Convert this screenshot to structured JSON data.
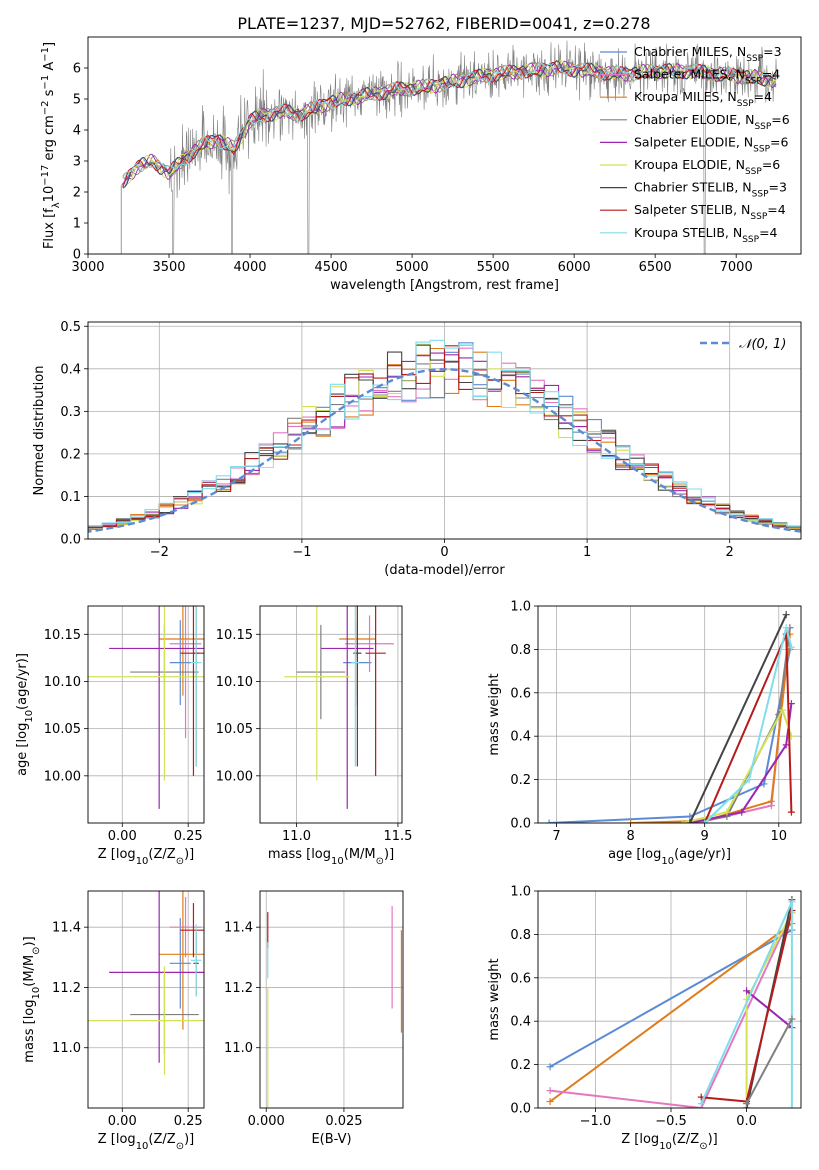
{
  "figure_title": "PLATE=1237, MJD=52762, FIBERID=0041, z=0.278",
  "colors": {
    "Chabrier MILES": "#5b8bd4",
    "Salpeter MILES": "#e377c2",
    "Kroupa MILES": "#e07b1a",
    "Chabrier ELODIE": "#808080",
    "Salpeter ELODIE": "#9b27b0",
    "Kroupa ELODIE": "#d4e157",
    "Chabrier STELIB": "#444444",
    "Salpeter STELIB": "#b71c1c",
    "Kroupa STELIB": "#80deea",
    "normal": "#5b8bd4"
  },
  "chart_data": [
    {
      "id": "spectrum",
      "type": "line",
      "title": "PLATE=1237, MJD=52762, FIBERID=0041, z=0.278",
      "xlabel": "wavelength [Angstrom, rest frame]",
      "ylabel": "Flux [f_λ 10^−17 erg cm^−2 s^−1 A^−1]",
      "xlim": [
        3000,
        7400
      ],
      "ylim": [
        0,
        7
      ],
      "xticks": [
        3000,
        3500,
        4000,
        4500,
        5000,
        5500,
        6000,
        6500,
        7000
      ],
      "yticks": [
        0,
        1,
        2,
        3,
        4,
        5,
        6
      ],
      "grid": false,
      "legend_position": "top-right",
      "legend": [
        {
          "name": "Chabrier MILES",
          "sub": "SSP",
          "n": "3"
        },
        {
          "name": "Salpeter MILES",
          "sub": "SSP",
          "n": "4"
        },
        {
          "name": "Kroupa MILES",
          "sub": "SSP",
          "n": "4"
        },
        {
          "name": "Chabrier ELODIE",
          "sub": "SSP",
          "n": "6"
        },
        {
          "name": "Salpeter ELODIE",
          "sub": "SSP",
          "n": "6"
        },
        {
          "name": "Kroupa ELODIE",
          "sub": "SSP",
          "n": "6"
        },
        {
          "name": "Chabrier STELIB",
          "sub": "SSP",
          "n": "3"
        },
        {
          "name": "Salpeter STELIB",
          "sub": "SSP",
          "n": "4"
        },
        {
          "name": "Kroupa STELIB",
          "sub": "SSP",
          "n": "4"
        }
      ],
      "continuum": [
        [
          3200,
          2.2
        ],
        [
          3300,
          2.8
        ],
        [
          3400,
          3.0
        ],
        [
          3500,
          2.6
        ],
        [
          3600,
          3.1
        ],
        [
          3700,
          3.5
        ],
        [
          3800,
          3.7
        ],
        [
          3900,
          3.4
        ],
        [
          4000,
          4.3
        ],
        [
          4100,
          4.5
        ],
        [
          4200,
          4.6
        ],
        [
          4300,
          4.5
        ],
        [
          4400,
          4.7
        ],
        [
          4500,
          4.9
        ],
        [
          4700,
          5.1
        ],
        [
          4900,
          5.3
        ],
        [
          5100,
          5.4
        ],
        [
          5300,
          5.6
        ],
        [
          5500,
          5.8
        ],
        [
          5700,
          5.9
        ],
        [
          5900,
          6.0
        ],
        [
          6100,
          5.9
        ],
        [
          6300,
          5.8
        ],
        [
          6500,
          5.9
        ],
        [
          6700,
          5.9
        ],
        [
          6900,
          5.8
        ],
        [
          7100,
          5.7
        ],
        [
          7250,
          5.6
        ]
      ]
    },
    {
      "id": "residuals",
      "type": "line",
      "xlabel": "(data-model)/error",
      "ylabel": "Normed distribution",
      "xlim": [
        -2.5,
        2.5
      ],
      "ylim": [
        0,
        0.51
      ],
      "xticks": [
        -2,
        -1,
        0,
        1,
        2
      ],
      "yticks": [
        0.0,
        0.1,
        0.2,
        0.3,
        0.4,
        0.5
      ],
      "grid": true,
      "legend_position": "top-right",
      "reference_label": "𝒩(0, 1)",
      "bin_width": 0.1
    },
    {
      "id": "age_vs_Z",
      "type": "scatter",
      "xlabel": "Z [log10(Z/Z⊙)]",
      "ylabel": "age  [log10(age/yr)]",
      "xlim": [
        -0.13,
        0.31
      ],
      "ylim": [
        9.95,
        10.18
      ],
      "xticks": [
        0.0,
        0.25
      ],
      "yticks": [
        10.0,
        10.05,
        10.1,
        10.15
      ],
      "grid": true,
      "errorbars": [
        {
          "series": "Chabrier MILES",
          "x": 0.22,
          "y": 10.12,
          "xerr": 0.04,
          "yerr": 0.045
        },
        {
          "series": "Salpeter MILES",
          "x": 0.24,
          "y": 10.14,
          "xerr": 0.06,
          "yerr": 0.1
        },
        {
          "series": "Kroupa MILES",
          "x": 0.23,
          "y": 10.145,
          "xerr": 0.09,
          "yerr": 0.06
        },
        {
          "series": "Chabrier ELODIE",
          "x": 0.16,
          "y": 10.11,
          "xerr": 0.13,
          "yerr": 0.05
        },
        {
          "series": "Salpeter ELODIE",
          "x": 0.14,
          "y": 10.135,
          "xerr": 0.19,
          "yerr": 0.17
        },
        {
          "series": "Kroupa ELODIE",
          "x": 0.16,
          "y": 10.105,
          "xerr": 0.29,
          "yerr": 0.11
        },
        {
          "series": "Chabrier STELIB",
          "x": 0.28,
          "y": 10.13,
          "xerr": 0.01,
          "yerr": 0.12
        },
        {
          "series": "Salpeter STELIB",
          "x": 0.27,
          "y": 10.13,
          "xerr": 0.05,
          "yerr": 0.13
        },
        {
          "series": "Kroupa STELIB",
          "x": 0.28,
          "y": 10.12,
          "xerr": 0.02,
          "yerr": 0.11
        }
      ]
    },
    {
      "id": "age_vs_mass",
      "type": "scatter",
      "xlabel": "mass [log10(M/M⊙)]",
      "ylabel": "",
      "xlim": [
        10.82,
        11.52
      ],
      "ylim": [
        9.95,
        10.18
      ],
      "xticks": [
        11.0,
        11.5
      ],
      "yticks": [
        10.0,
        10.05,
        10.1,
        10.15
      ],
      "grid": true,
      "errorbars": [
        {
          "series": "Chabrier MILES",
          "x": 11.3,
          "y": 10.12,
          "xerr": 0.07,
          "yerr": 0.045
        },
        {
          "series": "Salpeter MILES",
          "x": 11.36,
          "y": 10.14,
          "xerr": 0.12,
          "yerr": 0.03
        },
        {
          "series": "Kroupa MILES",
          "x": 11.3,
          "y": 10.145,
          "xerr": 0.09,
          "yerr": 0.06
        },
        {
          "series": "Chabrier ELODIE",
          "x": 11.12,
          "y": 10.11,
          "xerr": 0.12,
          "yerr": 0.05
        },
        {
          "series": "Salpeter ELODIE",
          "x": 11.25,
          "y": 10.135,
          "xerr": 0.13,
          "yerr": 0.17
        },
        {
          "series": "Kroupa ELODIE",
          "x": 11.1,
          "y": 10.105,
          "xerr": 0.16,
          "yerr": 0.11
        },
        {
          "series": "Chabrier STELIB",
          "x": 11.3,
          "y": 10.13,
          "xerr": 0.02,
          "yerr": 0.12
        },
        {
          "series": "Salpeter STELIB",
          "x": 11.39,
          "y": 10.13,
          "xerr": 0.05,
          "yerr": 0.13
        },
        {
          "series": "Kroupa STELIB",
          "x": 11.29,
          "y": 10.12,
          "xerr": 0.02,
          "yerr": 0.11
        }
      ]
    },
    {
      "id": "mass_weight_vs_age",
      "type": "line",
      "xlabel": "age  [log10(age/yr)]",
      "ylabel": "mass weight",
      "xlim": [
        6.75,
        10.3
      ],
      "ylim": [
        0,
        1
      ],
      "xticks": [
        7,
        8,
        9,
        10
      ],
      "yticks": [
        0.0,
        0.2,
        0.4,
        0.6,
        0.8,
        1.0
      ],
      "grid": true,
      "series": [
        {
          "name": "Chabrier MILES",
          "points": [
            [
              6.9,
              0.0
            ],
            [
              8.8,
              0.03
            ],
            [
              9.8,
              0.18
            ],
            [
              10.15,
              0.8
            ]
          ]
        },
        {
          "name": "Salpeter MILES",
          "points": [
            [
              8.9,
              0.0
            ],
            [
              9.9,
              0.08
            ],
            [
              10.15,
              0.9
            ]
          ]
        },
        {
          "name": "Kroupa MILES",
          "points": [
            [
              8.0,
              0.0
            ],
            [
              9.0,
              0.01
            ],
            [
              9.9,
              0.1
            ],
            [
              10.15,
              0.87
            ]
          ]
        },
        {
          "name": "Chabrier ELODIE",
          "points": [
            [
              8.8,
              0.0
            ],
            [
              9.3,
              0.03
            ],
            [
              10.0,
              0.5
            ],
            [
              10.15,
              0.9
            ]
          ]
        },
        {
          "name": "Salpeter ELODIE",
          "points": [
            [
              8.8,
              0.0
            ],
            [
              9.5,
              0.05
            ],
            [
              10.1,
              0.36
            ],
            [
              10.17,
              0.55
            ]
          ]
        },
        {
          "name": "Kroupa ELODIE",
          "points": [
            [
              8.7,
              0.0
            ],
            [
              9.3,
              0.05
            ],
            [
              10.05,
              0.52
            ],
            [
              10.17,
              0.4
            ]
          ]
        },
        {
          "name": "Chabrier STELIB",
          "points": [
            [
              8.8,
              0.0
            ],
            [
              10.1,
              0.96
            ]
          ]
        },
        {
          "name": "Salpeter STELIB",
          "points": [
            [
              9.0,
              0.0
            ],
            [
              10.1,
              0.87
            ],
            [
              10.17,
              0.05
            ]
          ]
        },
        {
          "name": "Kroupa STELIB",
          "points": [
            [
              9.0,
              0.0
            ],
            [
              9.6,
              0.2
            ],
            [
              10.1,
              0.9
            ],
            [
              10.17,
              0.81
            ]
          ]
        }
      ]
    },
    {
      "id": "mass_vs_Z",
      "type": "scatter",
      "xlabel": "Z [log10(Z/Z⊙)]",
      "ylabel": "mass [log10(M/M⊙)]",
      "xlim": [
        -0.13,
        0.31
      ],
      "ylim": [
        10.8,
        11.52
      ],
      "xticks": [
        0.0,
        0.25
      ],
      "yticks": [
        11.0,
        11.2,
        11.4
      ],
      "grid": true,
      "errorbars": [
        {
          "series": "Chabrier MILES",
          "x": 0.22,
          "y": 11.28,
          "xerr": 0.04,
          "yerr": 0.15
        },
        {
          "series": "Salpeter MILES",
          "x": 0.24,
          "y": 11.4,
          "xerr": 0.06,
          "yerr": 0.1
        },
        {
          "series": "Kroupa MILES",
          "x": 0.23,
          "y": 11.31,
          "xerr": 0.09,
          "yerr": 0.25
        },
        {
          "series": "Chabrier ELODIE",
          "x": 0.16,
          "y": 11.11,
          "xerr": 0.13,
          "yerr": 0.13
        },
        {
          "series": "Salpeter ELODIE",
          "x": 0.14,
          "y": 11.25,
          "xerr": 0.19,
          "yerr": 0.3
        },
        {
          "series": "Kroupa ELODIE",
          "x": 0.16,
          "y": 11.09,
          "xerr": 0.29,
          "yerr": 0.18
        },
        {
          "series": "Chabrier STELIB",
          "x": 0.28,
          "y": 11.28,
          "xerr": 0.01,
          "yerr": 0.11
        },
        {
          "series": "Salpeter STELIB",
          "x": 0.27,
          "y": 11.39,
          "xerr": 0.05,
          "yerr": 0.09
        },
        {
          "series": "Kroupa STELIB",
          "x": 0.28,
          "y": 11.29,
          "xerr": 0.02,
          "yerr": 0.12
        }
      ]
    },
    {
      "id": "mass_vs_ebv",
      "type": "scatter",
      "xlabel": "E(B-V)",
      "ylabel": "",
      "xlim": [
        -0.002,
        0.044
      ],
      "ylim": [
        10.8,
        11.52
      ],
      "xticks": [
        0.0,
        0.025
      ],
      "yticks": [
        11.0,
        11.2,
        11.4
      ],
      "grid": true,
      "errorbars": [
        {
          "series": "Salpeter STELIB",
          "x": 0.0005,
          "y": 11.39,
          "xerr": 0.0,
          "yerr": 0.06
        },
        {
          "series": "Kroupa ELODIE",
          "x": 0.0005,
          "y": 11.0,
          "xerr": 0.0,
          "yerr": 0.2
        },
        {
          "series": "Kroupa STELIB",
          "x": 0.0005,
          "y": 11.29,
          "xerr": 0.0,
          "yerr": 0.06
        },
        {
          "series": "Salpeter MILES",
          "x": 0.0405,
          "y": 11.3,
          "xerr": 0.0,
          "yerr": 0.17
        },
        {
          "series": "Kroupa MILES",
          "x": 0.0435,
          "y": 11.22,
          "xerr": 0.0,
          "yerr": 0.17
        }
      ]
    },
    {
      "id": "mass_weight_vs_Z",
      "type": "line",
      "xlabel": "Z [log10(Z/Z⊙)]",
      "ylabel": "mass weight",
      "xlim": [
        -1.38,
        0.36
      ],
      "ylim": [
        0,
        1
      ],
      "xticks": [
        -1.0,
        -0.5,
        0.0
      ],
      "yticks": [
        0.0,
        0.2,
        0.4,
        0.6,
        0.8,
        1.0
      ],
      "grid": true,
      "series": [
        {
          "name": "Chabrier MILES",
          "points": [
            [
              -1.3,
              0.19
            ],
            [
              0.3,
              0.82
            ]
          ]
        },
        {
          "name": "Kroupa MILES",
          "points": [
            [
              -1.3,
              0.03
            ],
            [
              0.3,
              0.85
            ]
          ]
        },
        {
          "name": "Salpeter MILES",
          "points": [
            [
              -1.3,
              0.08
            ],
            [
              -0.3,
              0.0
            ],
            [
              0.3,
              0.9
            ]
          ]
        },
        {
          "name": "Kroupa ELODIE",
          "points": [
            [
              0.0,
              0.0
            ],
            [
              0.0,
              0.5
            ],
            [
              0.3,
              0.9
            ]
          ]
        },
        {
          "name": "Salpeter ELODIE",
          "points": [
            [
              0.0,
              0.54
            ],
            [
              0.3,
              0.37
            ]
          ]
        },
        {
          "name": "Chabrier STELIB",
          "points": [
            [
              0.0,
              0.0
            ],
            [
              0.3,
              0.96
            ]
          ]
        },
        {
          "name": "Salpeter STELIB",
          "points": [
            [
              -0.3,
              0.05
            ],
            [
              0.0,
              0.03
            ],
            [
              0.3,
              0.91
            ]
          ]
        },
        {
          "name": "Kroupa STELIB",
          "points": [
            [
              -0.3,
              0.02
            ],
            [
              0.3,
              0.95
            ],
            [
              0.3,
              0.0
            ]
          ]
        },
        {
          "name": "Chabrier ELODIE",
          "points": [
            [
              0.0,
              0.02
            ],
            [
              0.3,
              0.41
            ]
          ]
        }
      ]
    }
  ]
}
